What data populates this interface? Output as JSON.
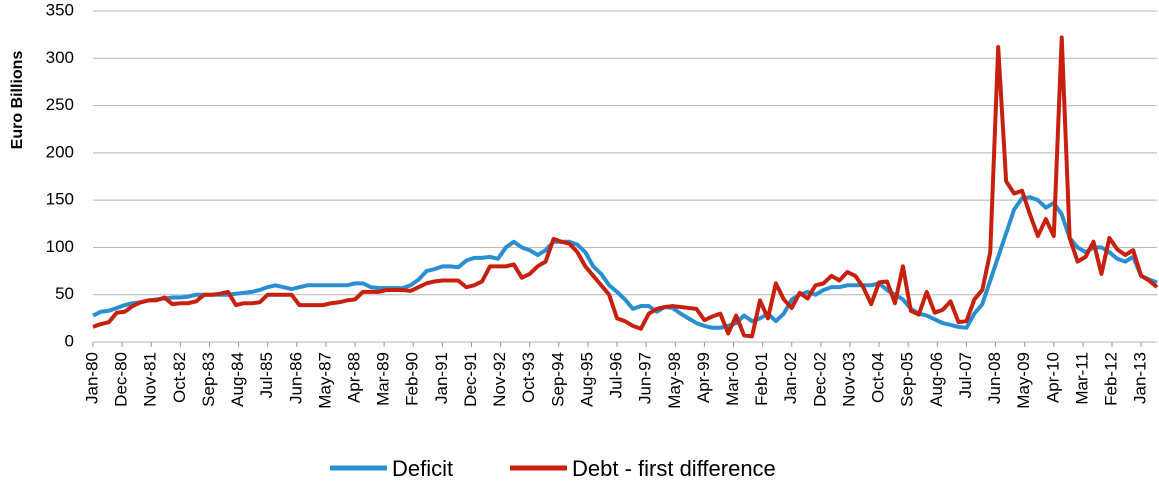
{
  "chart_data": {
    "type": "line",
    "y_axis_label": "Euro Billions",
    "x": [
      "Jan-80",
      "Apr-80",
      "Jul-80",
      "Oct-80",
      "Jan-81",
      "Apr-81",
      "Jul-81",
      "Oct-81",
      "Jan-82",
      "Apr-82",
      "Jul-82",
      "Oct-82",
      "Jan-83",
      "Apr-83",
      "Jul-83",
      "Oct-83",
      "Jan-84",
      "Apr-84",
      "Jul-84",
      "Oct-84",
      "Jan-85",
      "Apr-85",
      "Jul-85",
      "Oct-85",
      "Jan-86",
      "Apr-86",
      "Jul-86",
      "Oct-86",
      "Jan-87",
      "Apr-87",
      "Jul-87",
      "Oct-87",
      "Jan-88",
      "Apr-88",
      "Jul-88",
      "Oct-88",
      "Jan-89",
      "Apr-89",
      "Jul-89",
      "Oct-89",
      "Jan-90",
      "Apr-90",
      "Jul-90",
      "Oct-90",
      "Jan-91",
      "Apr-91",
      "Jul-91",
      "Oct-91",
      "Jan-92",
      "Apr-92",
      "Jul-92",
      "Oct-92",
      "Jan-93",
      "Apr-93",
      "Jul-93",
      "Oct-93",
      "Jan-94",
      "Apr-94",
      "Jul-94",
      "Oct-94",
      "Jan-95",
      "Apr-95",
      "Jul-95",
      "Oct-95",
      "Jan-96",
      "Apr-96",
      "Jul-96",
      "Oct-96",
      "Jan-97",
      "Apr-97",
      "Jul-97",
      "Oct-97",
      "Jan-98",
      "Apr-98",
      "Jul-98",
      "Oct-98",
      "Jan-99",
      "Apr-99",
      "Jul-99",
      "Oct-99",
      "Jan-00",
      "Apr-00",
      "Jul-00",
      "Oct-00",
      "Jan-01",
      "Apr-01",
      "Jul-01",
      "Oct-01",
      "Jan-02",
      "Apr-02",
      "Jul-02",
      "Oct-02",
      "Jan-03",
      "Apr-03",
      "Jul-03",
      "Oct-03",
      "Jan-04",
      "Apr-04",
      "Jul-04",
      "Oct-04",
      "Jan-05",
      "Apr-05",
      "Jul-05",
      "Oct-05",
      "Jan-06",
      "Apr-06",
      "Jul-06",
      "Oct-06",
      "Jan-07",
      "Apr-07",
      "Jul-07",
      "Oct-07",
      "Jan-08",
      "Apr-08",
      "Jul-08",
      "Oct-08",
      "Jan-09",
      "Apr-09",
      "Jul-09",
      "Oct-09",
      "Jan-10",
      "Apr-10",
      "Jul-10",
      "Oct-10",
      "Jan-11",
      "Apr-11",
      "Jul-11",
      "Oct-11",
      "Jan-12",
      "Apr-12",
      "Jul-12",
      "Oct-12",
      "Jan-13",
      "Apr-13",
      "Jul-13"
    ],
    "series": [
      {
        "name": "Deficit",
        "color": "#2a8fd0",
        "values": [
          28,
          32,
          33,
          36,
          39,
          41,
          42,
          44,
          45,
          46,
          47,
          47,
          48,
          50,
          50,
          50,
          50,
          50,
          51,
          52,
          53,
          55,
          58,
          60,
          58,
          56,
          58,
          60,
          60,
          60,
          60,
          60,
          60,
          62,
          62,
          58,
          57,
          57,
          57,
          57,
          60,
          66,
          75,
          77,
          80,
          80,
          79,
          86,
          89,
          89,
          90,
          88,
          100,
          106,
          100,
          97,
          92,
          97,
          106,
          106,
          106,
          103,
          95,
          80,
          72,
          60,
          53,
          45,
          35,
          38,
          38,
          32,
          37,
          36,
          30,
          25,
          20,
          17,
          15,
          15,
          17,
          20,
          28,
          22,
          25,
          30,
          22,
          30,
          45,
          50,
          53,
          50,
          55,
          58,
          58,
          60,
          60,
          60,
          60,
          62,
          55,
          50,
          45,
          35,
          30,
          28,
          24,
          20,
          18,
          16,
          15,
          30,
          40,
          65,
          90,
          115,
          140,
          152,
          153,
          150,
          142,
          147,
          135,
          110,
          100,
          95,
          100,
          100,
          95,
          88,
          85,
          90,
          70,
          66,
          63
        ]
      },
      {
        "name": "Debt - first difference",
        "color": "#c8200e",
        "values": [
          16,
          19,
          21,
          31,
          32,
          38,
          42,
          44,
          44,
          47,
          40,
          41,
          41,
          43,
          50,
          50,
          51,
          53,
          39,
          41,
          41,
          42,
          50,
          50,
          50,
          50,
          39,
          39,
          39,
          39,
          41,
          42,
          44,
          45,
          53,
          53,
          53,
          55,
          55,
          55,
          54,
          58,
          62,
          64,
          65,
          65,
          65,
          58,
          60,
          64,
          80,
          80,
          80,
          82,
          68,
          72,
          80,
          85,
          109,
          106,
          104,
          95,
          80,
          70,
          60,
          50,
          25,
          22,
          17,
          14,
          30,
          35,
          37,
          38,
          37,
          36,
          35,
          23,
          27,
          30,
          9,
          28,
          7,
          6,
          44,
          25,
          62,
          45,
          36,
          52,
          46,
          60,
          62,
          70,
          65,
          74,
          70,
          58,
          40,
          63,
          64,
          41,
          80,
          33,
          29,
          53,
          31,
          34,
          43,
          21,
          22,
          45,
          55,
          95,
          312,
          170,
          157,
          160,
          135,
          112,
          130,
          112,
          322,
          110,
          85,
          90,
          106,
          72,
          110,
          98,
          92,
          97,
          70,
          65,
          58
        ]
      }
    ],
    "xlim": [
      "Jan-80",
      "Jul-13"
    ],
    "xticks": [
      "Jan-80",
      "Dec-80",
      "Nov-81",
      "Oct-82",
      "Sep-83",
      "Aug-84",
      "Jul-85",
      "Jun-86",
      "May-87",
      "Apr-88",
      "Mar-89",
      "Feb-90",
      "Jan-91",
      "Dec-91",
      "Nov-92",
      "Oct-93",
      "Sep-94",
      "Aug-95",
      "Jul-96",
      "Jun-97",
      "May-98",
      "Apr-99",
      "Mar-00",
      "Feb-01",
      "Jan-02",
      "Dec-02",
      "Nov-03",
      "Oct-04",
      "Sep-05",
      "Aug-06",
      "Jul-07",
      "Jun-08",
      "May-09",
      "Apr-10",
      "Mar-11",
      "Feb-12",
      "Jan-13"
    ],
    "ylim": [
      0,
      350
    ],
    "yticks": [
      0,
      50,
      100,
      150,
      200,
      250,
      300,
      350
    ],
    "grid": true
  }
}
